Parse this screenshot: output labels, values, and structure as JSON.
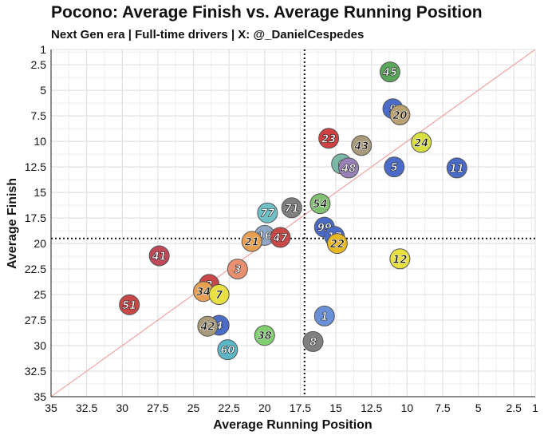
{
  "chart_data": {
    "type": "scatter",
    "title": "Pocono: Average Finish vs. Average Running Position",
    "subtitle": "Next Gen era | Full-time drivers | X: @_DanielCespedes",
    "xlabel": "Average Running Position",
    "ylabel": "Average Finish",
    "xlim": [
      35,
      1
    ],
    "ylim": [
      1,
      35
    ],
    "x_ticks": [
      "35",
      "32.5",
      "30",
      "27.5",
      "25",
      "22.5",
      "20",
      "17.5",
      "15",
      "12.5",
      "10",
      "7.5",
      "5",
      "2.5",
      "1"
    ],
    "x_tick_values": [
      35,
      32.5,
      30,
      27.5,
      25,
      22.5,
      20,
      17.5,
      15,
      12.5,
      10,
      7.5,
      5,
      2.5,
      1
    ],
    "y_ticks": [
      "1",
      "2.5",
      "5",
      "7.5",
      "10",
      "12.5",
      "15",
      "17.5",
      "20",
      "22.5",
      "25",
      "27.5",
      "30",
      "32.5",
      "35"
    ],
    "y_tick_values": [
      1,
      2.5,
      5,
      7.5,
      10,
      12.5,
      15,
      17.5,
      20,
      22.5,
      25,
      27.5,
      30,
      32.5,
      35
    ],
    "reference_lines": {
      "diagonal": true,
      "x_mean": 17.2,
      "y_mean": 19.5
    },
    "grid": true,
    "points": [
      {
        "label": "45",
        "x": 11.2,
        "y": 3.2,
        "color": "#5aa65a"
      },
      {
        "label": "9",
        "x": 11.0,
        "y": 6.8,
        "color": "#4a6cc8"
      },
      {
        "label": "20",
        "x": 10.5,
        "y": 7.4,
        "color": "#b8a070"
      },
      {
        "label": "23",
        "x": 15.5,
        "y": 9.7,
        "color": "#d04040"
      },
      {
        "label": "43",
        "x": 13.2,
        "y": 10.4,
        "color": "#a89a7a"
      },
      {
        "label": "24",
        "x": 9.0,
        "y": 10.1,
        "color": "#d8e040"
      },
      {
        "label": "6",
        "x": 14.6,
        "y": 12.2,
        "color": "#7ab8a8"
      },
      {
        "label": "48",
        "x": 14.1,
        "y": 12.6,
        "color": "#9a80b8"
      },
      {
        "label": "5",
        "x": 10.9,
        "y": 12.5,
        "color": "#4a6cc8"
      },
      {
        "label": "11",
        "x": 6.5,
        "y": 12.6,
        "color": "#4a6cc8"
      },
      {
        "label": "54",
        "x": 16.1,
        "y": 16.1,
        "color": "#80c070"
      },
      {
        "label": "71",
        "x": 18.1,
        "y": 16.5,
        "color": "#808080"
      },
      {
        "label": "77",
        "x": 19.8,
        "y": 17.0,
        "color": "#70c0c8"
      },
      {
        "label": "99",
        "x": 15.8,
        "y": 18.4,
        "color": "#4a6cc8"
      },
      {
        "label": "17",
        "x": 15.1,
        "y": 19.3,
        "color": "#4a6cc8"
      },
      {
        "label": "22",
        "x": 14.9,
        "y": 20.0,
        "color": "#e8b820"
      },
      {
        "label": "16",
        "x": 20.0,
        "y": 19.2,
        "color": "#90a8c8"
      },
      {
        "label": "47",
        "x": 18.9,
        "y": 19.4,
        "color": "#c84848"
      },
      {
        "label": "21",
        "x": 20.9,
        "y": 19.8,
        "color": "#e8a050"
      },
      {
        "label": "12",
        "x": 10.5,
        "y": 21.5,
        "color": "#e8e040"
      },
      {
        "label": "41",
        "x": 27.4,
        "y": 21.2,
        "color": "#c04858"
      },
      {
        "label": "3",
        "x": 21.9,
        "y": 22.5,
        "color": "#e89070"
      },
      {
        "label": "2",
        "x": 23.9,
        "y": 24.0,
        "color": "#c84848"
      },
      {
        "label": "34",
        "x": 24.3,
        "y": 24.7,
        "color": "#e8a050"
      },
      {
        "label": "7",
        "x": 23.2,
        "y": 25.0,
        "color": "#e8e040"
      },
      {
        "label": "51",
        "x": 29.5,
        "y": 26.0,
        "color": "#c84848"
      },
      {
        "label": "1",
        "x": 15.8,
        "y": 27.1,
        "color": "#6a90d8"
      },
      {
        "label": "4",
        "x": 23.2,
        "y": 28.0,
        "color": "#4a6cc8"
      },
      {
        "label": "42",
        "x": 24.0,
        "y": 28.1,
        "color": "#a89a7a"
      },
      {
        "label": "38",
        "x": 20.0,
        "y": 29.0,
        "color": "#80d070"
      },
      {
        "label": "8",
        "x": 16.6,
        "y": 29.6,
        "color": "#808080"
      },
      {
        "label": "60",
        "x": 22.6,
        "y": 30.4,
        "color": "#5ab8c8"
      }
    ]
  }
}
